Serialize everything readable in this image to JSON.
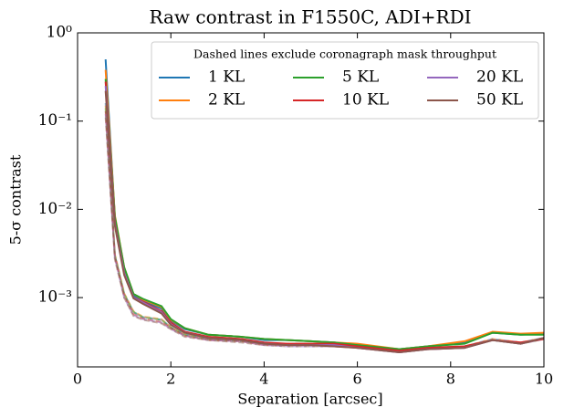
{
  "chart_data": {
    "type": "line",
    "title": "Raw contrast in F1550C, ADI+RDI",
    "xlabel": "Separation [arcsec]",
    "ylabel": "5-σ contrast",
    "yscale": "log",
    "xlim": [
      0,
      10
    ],
    "ylim": [
      0.000164,
      1
    ],
    "xticks": [
      0,
      2,
      4,
      6,
      8,
      10
    ],
    "yticks": [
      {
        "value": 1,
        "label": "10⁰"
      },
      {
        "value": 0.1,
        "label": "10⁻¹"
      },
      {
        "value": 0.01,
        "label": "10⁻²"
      },
      {
        "value": 0.001,
        "label": "10⁻³"
      }
    ],
    "legend_title": "Dashed lines exclude coronagraph mask throughput",
    "legend_loc": "upper right",
    "legend_ncol": 3,
    "x": [
      0.6,
      0.8,
      1.0,
      1.2,
      1.4,
      1.8,
      2.0,
      2.3,
      2.8,
      3.5,
      4.0,
      4.5,
      5.0,
      5.5,
      6.0,
      6.9,
      7.5,
      8.3,
      8.9,
      9.5,
      10.0
    ],
    "series": [
      {
        "name": "1 KL",
        "color": "#1f77b4",
        "values": [
          0.5,
          0.008,
          0.0021,
          0.00105,
          0.00092,
          0.00075,
          0.00055,
          0.00044,
          0.00038,
          0.00036,
          0.00033,
          0.00033,
          0.00032,
          0.00031,
          0.00029,
          0.00026,
          0.00028,
          0.00031,
          0.0004,
          0.00038,
          0.00039
        ]
      },
      {
        "name": "2 KL",
        "color": "#ff7f0e",
        "values": [
          0.38,
          0.0085,
          0.0022,
          0.0011,
          0.00095,
          0.00078,
          0.00056,
          0.00045,
          0.00038,
          0.00036,
          0.00034,
          0.00033,
          0.00032,
          0.00031,
          0.0003,
          0.00026,
          0.00028,
          0.00032,
          0.00041,
          0.00039,
          0.0004
        ]
      },
      {
        "name": "5 KL",
        "color": "#2ca02c",
        "values": [
          0.3,
          0.0082,
          0.0022,
          0.0011,
          0.00097,
          0.0008,
          0.00057,
          0.00045,
          0.00038,
          0.00036,
          0.00034,
          0.00033,
          0.00032,
          0.00031,
          0.00029,
          0.00026,
          0.00028,
          0.0003,
          0.0004,
          0.00038,
          0.00038
        ]
      },
      {
        "name": "10 KL",
        "color": "#d62728",
        "values": [
          0.28,
          0.007,
          0.0019,
          0.001,
          0.0009,
          0.0007,
          0.00052,
          0.00041,
          0.00036,
          0.00034,
          0.00031,
          0.0003,
          0.0003,
          0.0003,
          0.00028,
          0.00025,
          0.00027,
          0.00028,
          0.00033,
          0.00031,
          0.00034
        ]
      },
      {
        "name": "20 KL",
        "color": "#9467bd",
        "values": [
          0.25,
          0.0068,
          0.0019,
          0.001,
          0.00088,
          0.00068,
          0.0005,
          0.0004,
          0.00035,
          0.00033,
          0.0003,
          0.00029,
          0.00029,
          0.00029,
          0.00027,
          0.00024,
          0.00026,
          0.00027,
          0.00033,
          0.0003,
          0.00035
        ]
      },
      {
        "name": "50 KL",
        "color": "#8c564b",
        "values": [
          0.22,
          0.0065,
          0.0018,
          0.00098,
          0.00085,
          0.00066,
          0.00049,
          0.0004,
          0.00035,
          0.00033,
          0.0003,
          0.00029,
          0.00029,
          0.00028,
          0.00027,
          0.00024,
          0.00026,
          0.00027,
          0.00033,
          0.0003,
          0.00035
        ]
      }
    ],
    "dashed_series": [
      {
        "color": "#1f77b4",
        "values": [
          0.16,
          0.003,
          0.0011,
          0.00068,
          0.0006,
          0.00056,
          0.00046,
          0.00038,
          0.00034,
          0.00033,
          0.0003,
          0.0003,
          0.0003,
          0.0003,
          0.00028,
          0.00025,
          0.00027,
          0.00028,
          0.00034,
          0.00031,
          0.00035
        ]
      },
      {
        "color": "#ff7f0e",
        "values": [
          0.15,
          0.0031,
          0.00112,
          0.0007,
          0.00061,
          0.00057,
          0.00046,
          0.00038,
          0.00034,
          0.00033,
          0.0003,
          0.0003,
          0.0003,
          0.0003,
          0.00028,
          0.00025,
          0.00027,
          0.00028,
          0.00034,
          0.00031,
          0.00035
        ]
      },
      {
        "color": "#2ca02c",
        "values": [
          0.14,
          0.003,
          0.0011,
          0.00069,
          0.0006,
          0.00056,
          0.00046,
          0.00038,
          0.00034,
          0.00032,
          0.0003,
          0.00029,
          0.00029,
          0.00029,
          0.00028,
          0.00025,
          0.00027,
          0.00028,
          0.00033,
          0.0003,
          0.00034
        ]
      },
      {
        "color": "#d62728",
        "values": [
          0.13,
          0.0029,
          0.00105,
          0.00065,
          0.00058,
          0.00053,
          0.00045,
          0.00037,
          0.00033,
          0.00032,
          0.00029,
          0.00029,
          0.00029,
          0.00028,
          0.00027,
          0.00024,
          0.00026,
          0.00027,
          0.00033,
          0.0003,
          0.00034
        ]
      },
      {
        "color": "#9467bd",
        "values": [
          0.12,
          0.0028,
          0.001,
          0.00063,
          0.00057,
          0.00052,
          0.00044,
          0.00037,
          0.00033,
          0.00032,
          0.00029,
          0.00028,
          0.00028,
          0.00028,
          0.00027,
          0.00024,
          0.00026,
          0.00027,
          0.00033,
          0.0003,
          0.00034
        ]
      },
      {
        "color": "#8c564b",
        "values": [
          0.11,
          0.0027,
          0.001,
          0.00062,
          0.00056,
          0.00051,
          0.00044,
          0.00036,
          0.00033,
          0.00031,
          0.00029,
          0.00028,
          0.00028,
          0.00028,
          0.00027,
          0.00024,
          0.00026,
          0.00027,
          0.00033,
          0.0003,
          0.00034
        ]
      }
    ]
  }
}
